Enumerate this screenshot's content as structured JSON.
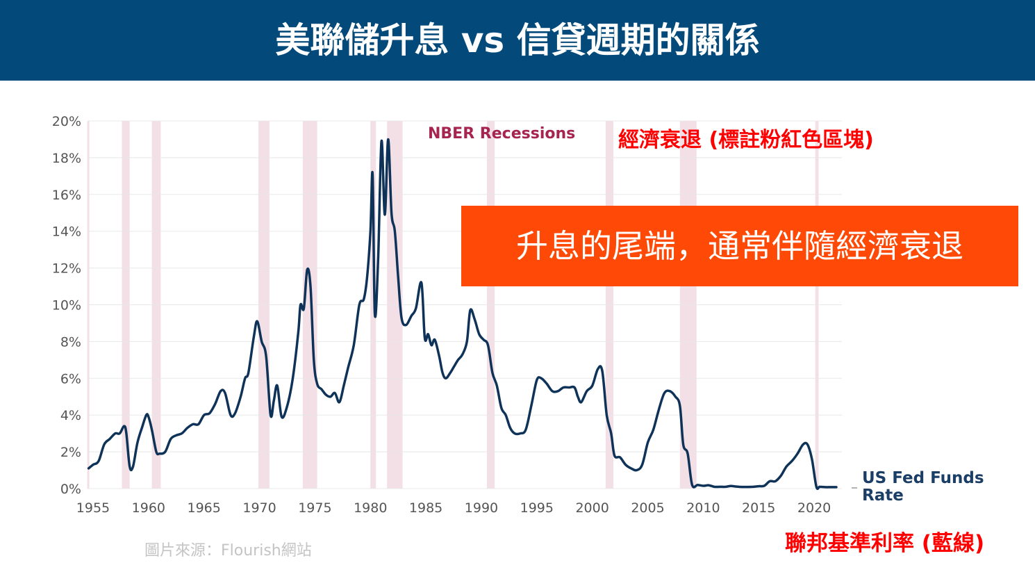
{
  "header": {
    "title": "美聯儲升息 vs 信貸週期的關係"
  },
  "annotations": {
    "callout": "升息的尾端，通常伴隨經濟衰退",
    "recession_label": "NBER Recessions",
    "recession_note": "經濟衰退 (標註粉紅色區塊)",
    "series_label": "US Fed Funds Rate",
    "series_note": "聯邦基準利率 (藍線)",
    "source": "圖片來源：Flourish網站"
  },
  "colors": {
    "banner": "#034a7a",
    "line": "#0f3358",
    "recession": "#f3dfe6",
    "callout": "#fe4a06",
    "grid": "#e8e8e8"
  },
  "chart_data": {
    "type": "line",
    "xlim": [
      1954.5,
      2022.5
    ],
    "ylim": [
      0,
      20
    ],
    "y_tick_labels": [
      "0%",
      "2%",
      "4%",
      "6%",
      "8%",
      "10%",
      "12%",
      "14%",
      "16%",
      "18%",
      "20%"
    ],
    "y_tick_values": [
      0,
      2,
      4,
      6,
      8,
      10,
      12,
      14,
      16,
      18,
      20
    ],
    "x_tick_labels": [
      "1955",
      "1960",
      "1965",
      "1970",
      "1975",
      "1980",
      "1985",
      "1990",
      "1995",
      "2000",
      "2005",
      "2010",
      "2015",
      "2020"
    ],
    "x_tick_values": [
      1955,
      1960,
      1965,
      1970,
      1975,
      1980,
      1985,
      1990,
      1995,
      2000,
      2005,
      2010,
      2015,
      2020
    ],
    "grid": "horizontal",
    "recessions": [
      [
        1957.6,
        1958.3
      ],
      [
        1960.3,
        1961.1
      ],
      [
        1969.9,
        1970.9
      ],
      [
        1973.9,
        1975.2
      ],
      [
        1980.0,
        1980.5
      ],
      [
        1981.5,
        1982.9
      ],
      [
        1990.5,
        1991.2
      ],
      [
        2001.2,
        2001.9
      ],
      [
        2007.9,
        2009.4
      ],
      [
        2020.1,
        2020.4
      ]
    ],
    "series": [
      {
        "x": [
          1954.6,
          1955.0,
          1955.5,
          1956.0,
          1956.5,
          1957.0,
          1957.4,
          1957.8,
          1958.0,
          1958.3,
          1958.6,
          1959.0,
          1959.4,
          1959.8,
          1960.0,
          1960.3,
          1960.7,
          1961.0,
          1961.5,
          1962.0,
          1962.5,
          1963.0,
          1963.5,
          1964.0,
          1964.5,
          1965.0,
          1965.5,
          1966.0,
          1966.5,
          1966.9,
          1967.4,
          1967.8,
          1968.3,
          1968.7,
          1969.0,
          1969.5,
          1969.8,
          1970.2,
          1970.6,
          1971.0,
          1971.3,
          1971.6,
          1972.0,
          1972.5,
          1973.0,
          1973.5,
          1973.7,
          1974.0,
          1974.3,
          1974.6,
          1974.9,
          1975.2,
          1975.6,
          1976.0,
          1976.4,
          1976.8,
          1977.2,
          1977.6,
          1978.0,
          1978.5,
          1979.0,
          1979.4,
          1979.7,
          1980.0,
          1980.2,
          1980.4,
          1980.7,
          1981.0,
          1981.3,
          1981.6,
          1981.9,
          1982.2,
          1982.5,
          1982.8,
          1983.2,
          1983.7,
          1984.1,
          1984.6,
          1984.9,
          1985.2,
          1985.5,
          1985.8,
          1986.2,
          1986.5,
          1986.8,
          1987.2,
          1987.5,
          1987.9,
          1988.3,
          1988.7,
          1989.0,
          1989.4,
          1989.8,
          1990.2,
          1990.6,
          1991.0,
          1991.4,
          1991.8,
          1992.2,
          1992.6,
          1993.0,
          1993.5,
          1994.0,
          1994.5,
          1995.0,
          1995.4,
          1995.9,
          1996.4,
          1996.9,
          1997.4,
          1997.9,
          1998.4,
          1998.7,
          1999.0,
          1999.5,
          2000.0,
          2000.5,
          2000.9,
          2001.3,
          2001.7,
          2002.0,
          2002.5,
          2003.0,
          2003.5,
          2004.0,
          2004.5,
          2005.0,
          2005.5,
          2006.0,
          2006.5,
          2007.0,
          2007.5,
          2007.9,
          2008.2,
          2008.6,
          2009.0,
          2009.5,
          2010.0,
          2010.5,
          2011.0,
          2011.5,
          2012.0,
          2012.5,
          2013.0,
          2013.5,
          2014.0,
          2014.5,
          2015.0,
          2015.5,
          2016.0,
          2016.5,
          2017.0,
          2017.5,
          2018.0,
          2018.5,
          2019.0,
          2019.4,
          2019.8,
          2020.2,
          2020.5,
          2021.0,
          2021.5,
          2022.0
        ],
        "values": [
          1.1,
          1.3,
          1.5,
          2.4,
          2.7,
          3.0,
          3.0,
          3.4,
          3.0,
          1.2,
          1.2,
          2.5,
          3.3,
          4.0,
          3.9,
          3.2,
          2.0,
          1.9,
          2.0,
          2.7,
          2.9,
          3.0,
          3.3,
          3.5,
          3.5,
          4.0,
          4.1,
          4.6,
          5.3,
          5.2,
          4.0,
          4.1,
          5.0,
          6.0,
          6.3,
          8.3,
          9.1,
          8.0,
          7.2,
          4.0,
          4.8,
          5.6,
          3.9,
          4.5,
          6.0,
          8.5,
          10.0,
          9.8,
          11.9,
          11.0,
          7.0,
          5.7,
          5.4,
          5.1,
          5.0,
          5.2,
          4.7,
          5.6,
          6.6,
          7.8,
          10.0,
          10.3,
          11.5,
          14.0,
          17.1,
          9.5,
          12.5,
          18.9,
          14.9,
          19.0,
          15.0,
          14.0,
          11.5,
          9.3,
          8.9,
          9.4,
          9.8,
          11.2,
          8.2,
          8.4,
          7.8,
          8.1,
          7.2,
          6.3,
          6.0,
          6.3,
          6.6,
          7.0,
          7.3,
          8.0,
          9.7,
          9.2,
          8.4,
          8.1,
          7.8,
          6.3,
          5.6,
          4.4,
          4.0,
          3.3,
          3.0,
          3.0,
          3.2,
          4.5,
          5.9,
          6.0,
          5.7,
          5.3,
          5.3,
          5.5,
          5.5,
          5.5,
          5.0,
          4.7,
          5.3,
          5.6,
          6.5,
          6.4,
          4.0,
          3.0,
          1.8,
          1.7,
          1.3,
          1.1,
          1.0,
          1.3,
          2.5,
          3.2,
          4.3,
          5.2,
          5.3,
          5.0,
          4.5,
          2.4,
          1.9,
          0.2,
          0.2,
          0.15,
          0.18,
          0.1,
          0.1,
          0.1,
          0.14,
          0.11,
          0.09,
          0.09,
          0.1,
          0.13,
          0.15,
          0.4,
          0.4,
          0.7,
          1.2,
          1.5,
          1.9,
          2.4,
          2.4,
          1.6,
          0.1,
          0.1,
          0.08,
          0.08,
          0.08
        ]
      }
    ]
  }
}
